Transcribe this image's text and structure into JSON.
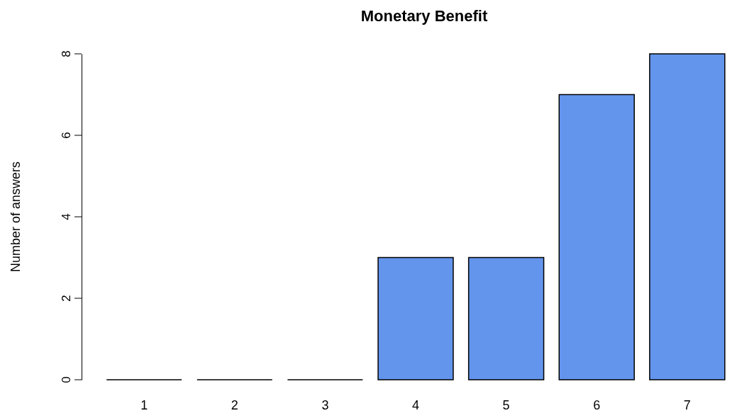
{
  "chart_data": {
    "type": "bar",
    "title": "Monetary Benefit",
    "ylabel": "Number of answers",
    "categories": [
      "1",
      "2",
      "3",
      "4",
      "5",
      "6",
      "7"
    ],
    "values": [
      0,
      0,
      0,
      3,
      3,
      7,
      8
    ],
    "color": "#6495ed",
    "ylim": [
      0,
      8
    ],
    "yticks": [
      0,
      2,
      4,
      6,
      8
    ],
    "grid": false
  }
}
